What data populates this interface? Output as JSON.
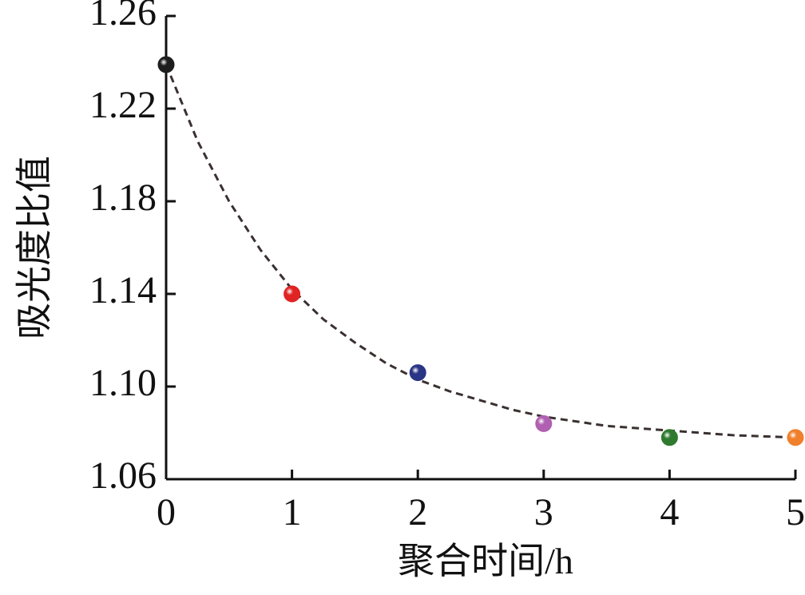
{
  "chart_data": {
    "type": "scatter",
    "x_label": "聚合时间/h",
    "y_label": "吸光度比值",
    "x": [
      0,
      1,
      2,
      3,
      4,
      5
    ],
    "values": [
      1.239,
      1.14,
      1.106,
      1.084,
      1.078,
      1.078
    ],
    "colors": [
      "#1e1e1e",
      "#e02424",
      "#2b3585",
      "#b060b0",
      "#2f7a2f",
      "#f0802c"
    ],
    "fit": {
      "x": [
        0,
        0.25,
        0.5,
        0.75,
        1,
        1.25,
        1.5,
        1.75,
        2,
        2.25,
        2.5,
        2.75,
        3,
        3.5,
        4,
        4.5,
        5
      ],
      "values": [
        1.239,
        1.206,
        1.18,
        1.159,
        1.142,
        1.129,
        1.119,
        1.11,
        1.103,
        1.098,
        1.094,
        1.09,
        1.087,
        1.083,
        1.081,
        1.079,
        1.078
      ],
      "color": "#3a3030",
      "dashed": true
    },
    "xlim": [
      0,
      5
    ],
    "xticks": [
      0,
      1,
      2,
      3,
      4,
      5
    ],
    "ylim": [
      1.06,
      1.26
    ],
    "yticks": [
      {
        "value": 1.06,
        "label": "1.06"
      },
      {
        "value": 1.1,
        "label": "1.10"
      },
      1.14,
      1.18,
      1.22,
      1.26
    ]
  }
}
